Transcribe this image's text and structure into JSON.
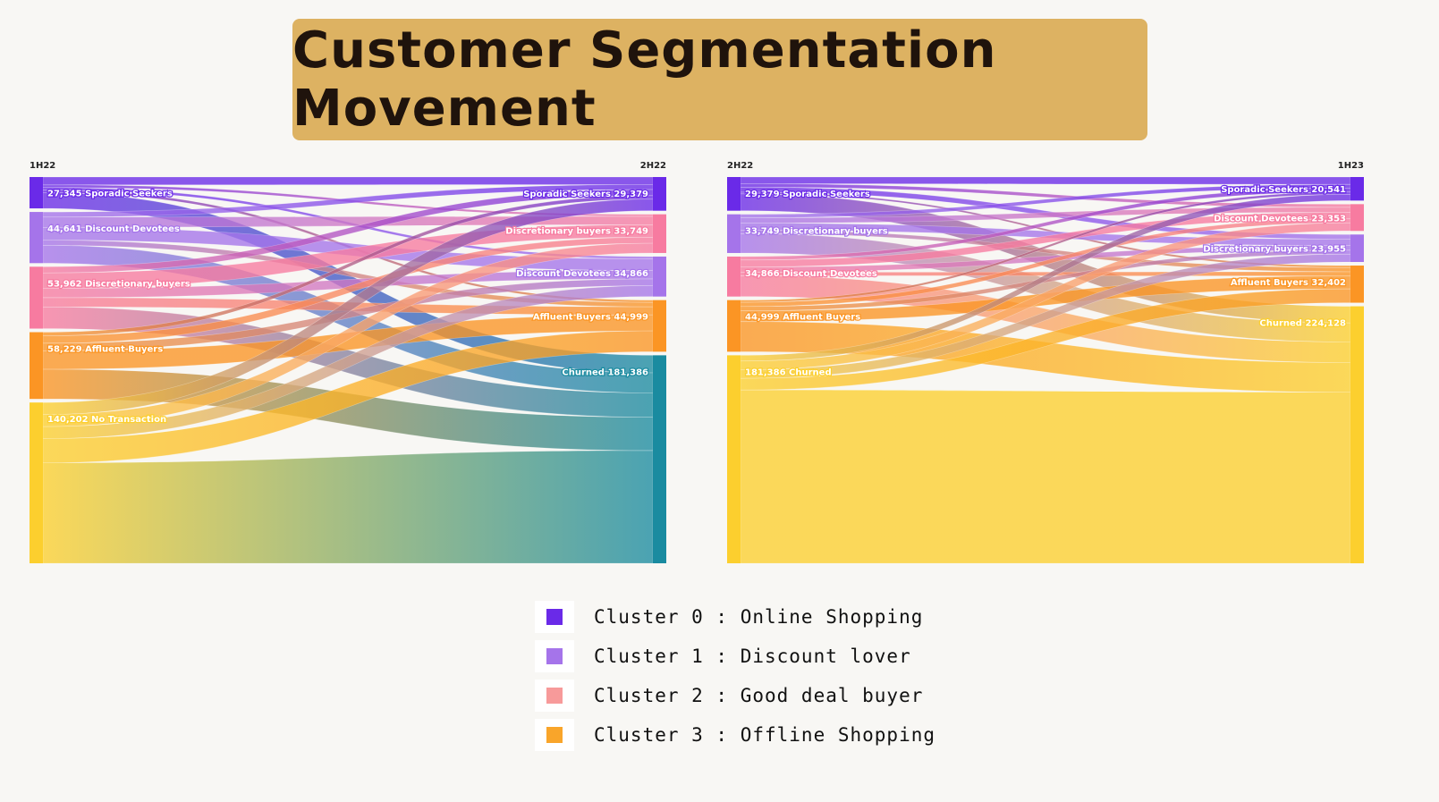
{
  "title": "Customer Segmentation Movement",
  "colors": {
    "title_bg": "#ddb262",
    "cluster0": "#6a2ae8",
    "cluster1": "#a574ea",
    "cluster2": "#f77ba0",
    "cluster3": "#fb9524",
    "none": "#fccf2e",
    "churn": "#1a8ba0"
  },
  "chart_data": [
    {
      "type": "sankey",
      "source_stage": "1H22",
      "target_stage": "2H22",
      "sources": [
        {
          "label": "27,345 Sporadic Seekers",
          "value": 27345,
          "color": "#6a2ae8"
        },
        {
          "label": "44,641 Discount Devotees",
          "value": 44641,
          "color": "#a574ea"
        },
        {
          "label": "53,962 Discretionary buyers",
          "value": 53962,
          "color": "#f77ba0"
        },
        {
          "label": "58,229 Affluent Buyers",
          "value": 58229,
          "color": "#fb9524"
        },
        {
          "label": "140,202 No Transaction",
          "value": 140202,
          "color": "#fccf2e"
        }
      ],
      "targets": [
        {
          "label": "Sporadic Seekers 29,379",
          "value": 29379,
          "color": "#6a2ae8"
        },
        {
          "label": "Discretionary buyers 33,749",
          "value": 33749,
          "color": "#f77ba0"
        },
        {
          "label": "Discount Devotees 34,866",
          "value": 34866,
          "color": "#a574ea"
        },
        {
          "label": "Affluent Buyers 44,999",
          "value": 44999,
          "color": "#fb9524"
        },
        {
          "label": "Churned 181,386",
          "value": 181386,
          "color": "#1a8ba0"
        }
      ]
    },
    {
      "type": "sankey",
      "source_stage": "2H22",
      "target_stage": "1H23",
      "sources": [
        {
          "label": "29,379 Sporadic Seekers",
          "value": 29379,
          "color": "#6a2ae8"
        },
        {
          "label": "33,749 Discretionary buyers",
          "value": 33749,
          "color": "#a574ea"
        },
        {
          "label": "34,866 Discount Devotees",
          "value": 34866,
          "color": "#f77ba0"
        },
        {
          "label": "44,999 Affluent Buyers",
          "value": 44999,
          "color": "#fb9524"
        },
        {
          "label": "181,386 Churned",
          "value": 181386,
          "color": "#fccf2e"
        }
      ],
      "targets": [
        {
          "label": "Sporadic Seekers 20,541",
          "value": 20541,
          "color": "#6a2ae8"
        },
        {
          "label": "Discount Devotees 23,353",
          "value": 23353,
          "color": "#f77ba0"
        },
        {
          "label": "Discretionary buyers 23,955",
          "value": 23955,
          "color": "#a574ea"
        },
        {
          "label": "Affluent Buyers 32,402",
          "value": 32402,
          "color": "#fb9524"
        },
        {
          "label": "Churned 224,128",
          "value": 224128,
          "color": "#fccf2e"
        }
      ]
    }
  ],
  "legend": [
    {
      "label": "Cluster 0 : Online Shopping",
      "color": "#6a2ae8"
    },
    {
      "label": "Cluster 1 : Discount lover",
      "color": "#a574ea"
    },
    {
      "label": "Cluster 2 : Good deal buyer",
      "color": "#f79a9a"
    },
    {
      "label": "Cluster 3 : Offline Shopping",
      "color": "#f9a52a"
    }
  ]
}
